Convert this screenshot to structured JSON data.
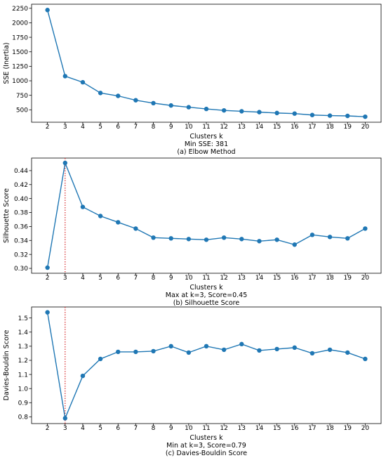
{
  "chart_data": [
    {
      "type": "line",
      "title": "",
      "xlabel": "Clusters k",
      "ylabel": "SSE (Inertia)",
      "annotation": "Min SSE: 381",
      "caption": "(a) Elbow Method",
      "x": [
        2,
        3,
        4,
        5,
        6,
        7,
        8,
        9,
        10,
        11,
        12,
        13,
        14,
        15,
        16,
        17,
        18,
        19,
        20
      ],
      "values": [
        2220,
        1080,
        975,
        790,
        740,
        665,
        615,
        575,
        545,
        515,
        490,
        475,
        460,
        445,
        435,
        410,
        400,
        395,
        381
      ],
      "ylim": [
        286,
        2320
      ],
      "yticks": [
        500,
        750,
        1000,
        1250,
        1500,
        1750,
        2000,
        2250
      ],
      "ytick_labels": [
        "500",
        "750",
        "1000",
        "1250",
        "1500",
        "1750",
        "2000",
        "2250"
      ],
      "grid": false,
      "marker_line": null,
      "color": "#1f77b4"
    },
    {
      "type": "line",
      "title": "",
      "xlabel": "Clusters k",
      "ylabel": "Silhouette Score",
      "annotation": "Max at k=3, Score=0.45",
      "caption": "(b) Silhouette Score",
      "x": [
        2,
        3,
        4,
        5,
        6,
        7,
        8,
        9,
        10,
        11,
        12,
        13,
        14,
        15,
        16,
        17,
        18,
        19,
        20
      ],
      "values": [
        0.301,
        0.451,
        0.388,
        0.375,
        0.366,
        0.357,
        0.344,
        0.343,
        0.342,
        0.341,
        0.344,
        0.342,
        0.339,
        0.341,
        0.334,
        0.348,
        0.345,
        0.343,
        0.357
      ],
      "ylim": [
        0.293,
        0.458
      ],
      "yticks": [
        0.3,
        0.32,
        0.34,
        0.36,
        0.38,
        0.4,
        0.42,
        0.44
      ],
      "ytick_labels": [
        "0.30",
        "0.32",
        "0.34",
        "0.36",
        "0.38",
        "0.40",
        "0.42",
        "0.44"
      ],
      "grid": false,
      "marker_line": 3,
      "color": "#1f77b4"
    },
    {
      "type": "line",
      "title": "",
      "xlabel": "Clusters k",
      "ylabel": "Davies-Bouldin Score",
      "annotation": "Min at k=3, Score=0.79",
      "caption": "(c) Davies-Bouldin Score",
      "x": [
        2,
        3,
        4,
        5,
        6,
        7,
        8,
        9,
        10,
        11,
        12,
        13,
        14,
        15,
        16,
        17,
        18,
        19,
        20
      ],
      "values": [
        1.54,
        0.79,
        1.09,
        1.21,
        1.26,
        1.26,
        1.265,
        1.3,
        1.255,
        1.3,
        1.275,
        1.315,
        1.27,
        1.28,
        1.29,
        1.25,
        1.275,
        1.255,
        1.21
      ],
      "ylim": [
        0.752,
        1.578
      ],
      "yticks": [
        0.8,
        0.9,
        1.0,
        1.1,
        1.2,
        1.3,
        1.4,
        1.5
      ],
      "ytick_labels": [
        "0.8",
        "0.9",
        "1.0",
        "1.1",
        "1.2",
        "1.3",
        "1.4",
        "1.5"
      ],
      "grid": false,
      "marker_line": 3,
      "color": "#1f77b4"
    }
  ],
  "colors": {
    "series": "#1f77b4",
    "marker_line": "#d62728"
  }
}
